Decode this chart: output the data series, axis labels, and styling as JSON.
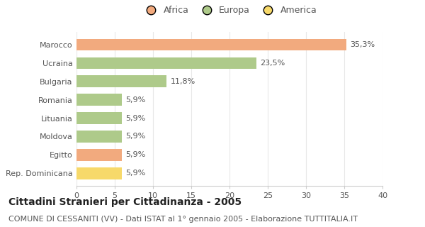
{
  "categories": [
    "Marocco",
    "Ucraina",
    "Bulgaria",
    "Romania",
    "Lituania",
    "Moldova",
    "Egitto",
    "Rep. Dominicana"
  ],
  "values": [
    35.3,
    23.5,
    11.8,
    5.9,
    5.9,
    5.9,
    5.9,
    5.9
  ],
  "labels": [
    "35,3%",
    "23,5%",
    "11,8%",
    "5,9%",
    "5,9%",
    "5,9%",
    "5,9%",
    "5,9%"
  ],
  "colors": [
    "#F2AA7E",
    "#AECA8A",
    "#AECA8A",
    "#AECA8A",
    "#AECA8A",
    "#AECA8A",
    "#F2AA7E",
    "#F7D96A"
  ],
  "legend_labels": [
    "Africa",
    "Europa",
    "America"
  ],
  "legend_colors": [
    "#F2AA7E",
    "#AECA8A",
    "#F7D96A"
  ],
  "title": "Cittadini Stranieri per Cittadinanza - 2005",
  "subtitle": "COMUNE DI CESSANITI (VV) - Dati ISTAT al 1° gennaio 2005 - Elaborazione TUTTITALIA.IT",
  "xlim": [
    0,
    40
  ],
  "xticks": [
    0,
    5,
    10,
    15,
    20,
    25,
    30,
    35,
    40
  ],
  "bg_color": "#FFFFFF",
  "grid_color": "#E8E8E8",
  "title_fontsize": 10,
  "subtitle_fontsize": 8,
  "label_fontsize": 8,
  "tick_fontsize": 8,
  "legend_fontsize": 9,
  "bar_height": 0.65
}
